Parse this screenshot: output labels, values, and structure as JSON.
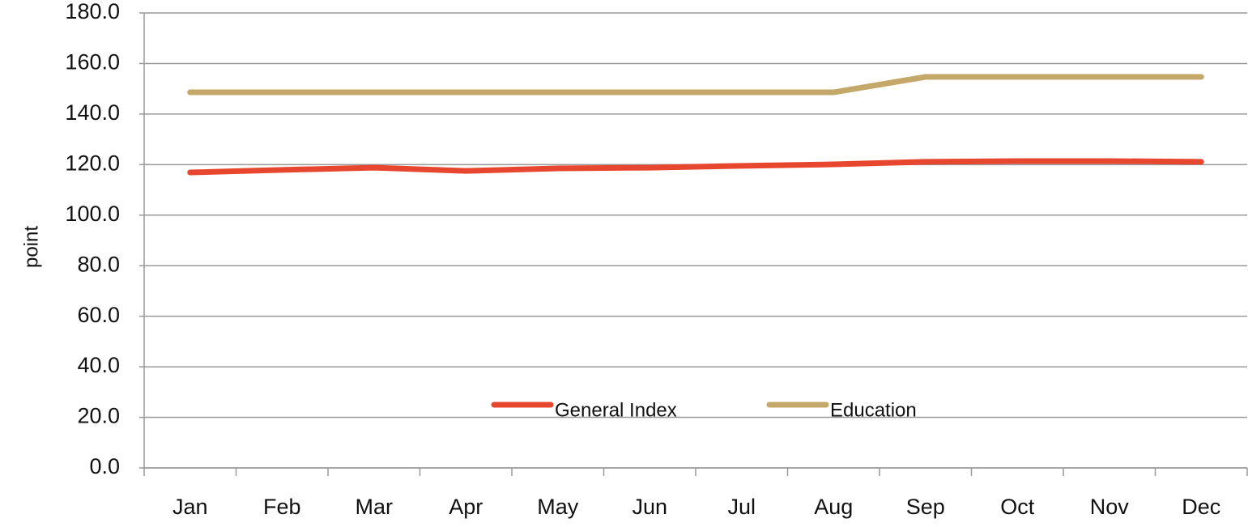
{
  "chart_data": {
    "type": "line",
    "y_label": "point",
    "categories": [
      "Jan",
      "Feb",
      "Mar",
      "Apr",
      "May",
      "Jun",
      "Jul",
      "Aug",
      "Sep",
      "Oct",
      "Nov",
      "Dec"
    ],
    "series": [
      {
        "name": "General Index",
        "color": "#e8472f",
        "values": [
          116.9,
          117.9,
          118.8,
          117.5,
          118.5,
          118.8,
          119.5,
          120.1,
          121.1,
          121.4,
          121.4,
          121.1
        ]
      },
      {
        "name": "Education",
        "color": "#c4a86a",
        "values": [
          148.6,
          148.6,
          148.6,
          148.6,
          148.6,
          148.6,
          148.6,
          148.6,
          154.7,
          154.7,
          154.7,
          154.7
        ]
      }
    ],
    "ylim": [
      0,
      180
    ],
    "yticks": [
      {
        "value": 0,
        "label": "0.0"
      },
      {
        "value": 20,
        "label": "20.0"
      },
      {
        "value": 40,
        "label": "40.0"
      },
      {
        "value": 60,
        "label": "60.0"
      },
      {
        "value": 80,
        "label": "80.0"
      },
      {
        "value": 100,
        "label": "100.0"
      },
      {
        "value": 120,
        "label": "120.0"
      },
      {
        "value": 140,
        "label": "140.0"
      },
      {
        "value": 160,
        "label": "160.0"
      },
      {
        "value": 180,
        "label": "180.0"
      }
    ],
    "grid": true,
    "legend": "bottom"
  }
}
